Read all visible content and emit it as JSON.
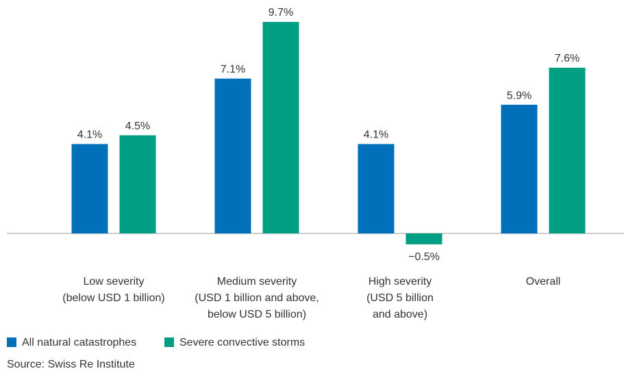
{
  "chart_data": {
    "type": "bar",
    "categories": [
      [
        "Low severity",
        "(below USD 1 billion)"
      ],
      [
        "Medium severity",
        "(USD 1 billion and above,",
        "below USD 5 billion)"
      ],
      [
        "High severity",
        "(USD 5 billion",
        "and above)"
      ],
      [
        "Overall"
      ]
    ],
    "series": [
      {
        "name": "All natural catastrophes",
        "color": "#0070ba",
        "values": [
          4.1,
          7.1,
          4.1,
          5.9
        ],
        "value_labels": [
          "4.1%",
          "7.1%",
          "4.1%",
          "5.9%"
        ]
      },
      {
        "name": "Severe convective storms",
        "color": "#009e82",
        "values": [
          4.5,
          9.7,
          -0.5,
          7.6
        ],
        "value_labels": [
          "4.5%",
          "9.7%",
          "−0.5%",
          "7.6%"
        ]
      }
    ],
    "source": "Source: Swiss Re Institute"
  }
}
